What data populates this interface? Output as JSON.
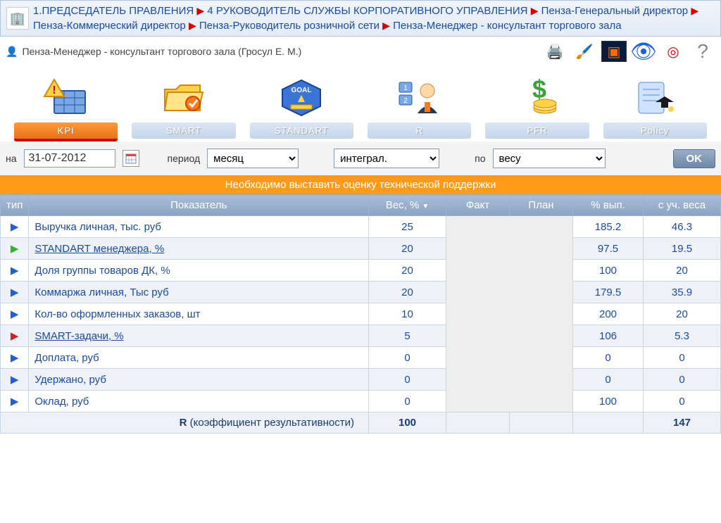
{
  "breadcrumb": {
    "parts": [
      "1.ПРЕДСЕДАТЕЛЬ ПРАВЛЕНИЯ",
      "4 РУКОВОДИТЕЛЬ СЛУЖБЫ КОРПОРАТИВНОГО УПРАВЛЕНИЯ",
      "Пенза-Генеральный директор",
      "Пенза-Коммерческий директор",
      "Пенза-Руководитель розничной сети",
      "Пенза-Менеджер - консультант торгового зала"
    ]
  },
  "subheader": {
    "title": "Пенза-Менеджер - консультант торгового зала  (Гросул Е. М.)"
  },
  "tabs": [
    {
      "label": "KPI",
      "icon": "alert-grid",
      "active": true
    },
    {
      "label": "SMART",
      "icon": "folder",
      "active": false
    },
    {
      "label": "STANDART",
      "icon": "goal",
      "active": false
    },
    {
      "label": "R",
      "icon": "person",
      "active": false
    },
    {
      "label": "PFR",
      "icon": "money",
      "active": false
    },
    {
      "label": "Policy",
      "icon": "doc",
      "active": false
    }
  ],
  "filter": {
    "date_label": "на",
    "date_value": "31-07-2012",
    "period_label": "период",
    "period_value": "месяц",
    "integral_value": "интеграл.",
    "by_label": "по",
    "by_value": "весу",
    "ok": "OK"
  },
  "banner": "Необходимо выставить оценку технической поддержки",
  "table": {
    "headers": {
      "type": "тип",
      "indicator": "Показатель",
      "weight": "Вес, %",
      "fact": "Факт",
      "plan": "План",
      "pct": "% вып.",
      "weighted": "с уч. веса"
    },
    "rows": [
      {
        "arrow": "blue",
        "name": "Выручка личная, тыс. руб",
        "link": false,
        "weight": "25",
        "pct": "185.2",
        "weighted": "46.3"
      },
      {
        "arrow": "green",
        "name": "STANDART менеджера, %",
        "link": true,
        "weight": "20",
        "pct": "97.5",
        "weighted": "19.5"
      },
      {
        "arrow": "blue",
        "name": "Доля группы товаров ДК, %",
        "link": false,
        "weight": "20",
        "pct": "100",
        "weighted": "20"
      },
      {
        "arrow": "blue",
        "name": "Коммаржа личная, Тыс руб",
        "link": false,
        "weight": "20",
        "pct": "179.5",
        "weighted": "35.9"
      },
      {
        "arrow": "blue",
        "name": "Кол-во оформленных заказов, шт",
        "link": false,
        "weight": "10",
        "pct": "200",
        "weighted": "20"
      },
      {
        "arrow": "red",
        "name": "SMART-задачи, %",
        "link": true,
        "weight": "5",
        "pct": "106",
        "weighted": "5.3"
      },
      {
        "arrow": "blue",
        "name": "Доплата, руб",
        "link": false,
        "weight": "0",
        "pct": "0",
        "weighted": "0"
      },
      {
        "arrow": "blue",
        "name": "Удержано, руб",
        "link": false,
        "weight": "0",
        "pct": "0",
        "weighted": "0"
      },
      {
        "arrow": "blue",
        "name": "Оклад, руб",
        "link": false,
        "weight": "0",
        "pct": "100",
        "weighted": "0"
      }
    ],
    "footer": {
      "label": "R (коэффициент результативности)",
      "weight": "100",
      "weighted": "147"
    }
  },
  "colors": {
    "breadcrumb_link": "#1b4aa0",
    "banner_bg": "#ff9b19",
    "header_grad_top": "#a9bdd6",
    "header_grad_bot": "#8aa4c4",
    "active_tab_top": "#ff9a3a",
    "active_tab_bot": "#e8721b"
  }
}
